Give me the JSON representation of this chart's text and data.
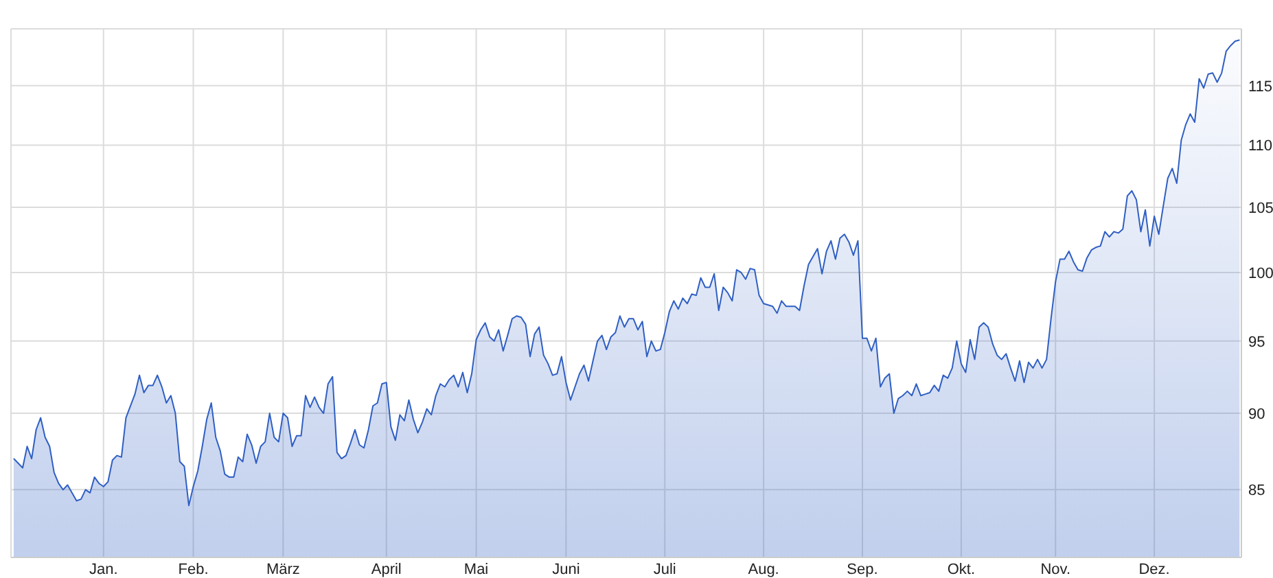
{
  "chart_data": {
    "type": "area",
    "color": "#2f5fc3",
    "categories": [
      null,
      null,
      null,
      null,
      null,
      null,
      null,
      null,
      null,
      null,
      null,
      null,
      null,
      null,
      null,
      null,
      null,
      null,
      null,
      null,
      "Jan.",
      null,
      null,
      null,
      null,
      null,
      null,
      null,
      null,
      null,
      null,
      null,
      null,
      null,
      null,
      null,
      null,
      null,
      null,
      null,
      "Feb.",
      null,
      null,
      null,
      null,
      null,
      null,
      null,
      null,
      null,
      null,
      null,
      null,
      null,
      null,
      null,
      null,
      null,
      null,
      null,
      "März",
      null,
      null,
      null,
      null,
      null,
      null,
      null,
      null,
      null,
      null,
      null,
      null,
      null,
      null,
      null,
      null,
      null,
      null,
      null,
      null,
      null,
      null,
      "April",
      null,
      null,
      null,
      null,
      null,
      null,
      null,
      null,
      null,
      null,
      null,
      null,
      null,
      null,
      null,
      null,
      null,
      null,
      null,
      "Mai",
      null,
      null,
      null,
      null,
      null,
      null,
      null,
      null,
      null,
      null,
      null,
      null,
      null,
      null,
      null,
      null,
      null,
      null,
      null,
      "Juni",
      null,
      null,
      null,
      null,
      null,
      null,
      null,
      null,
      null,
      null,
      null,
      null,
      null,
      null,
      null,
      null,
      null,
      null,
      null,
      null,
      null,
      "Juli",
      null,
      null,
      null,
      null,
      null,
      null,
      null,
      null,
      null,
      null,
      null,
      null,
      null,
      null,
      null,
      null,
      null,
      null,
      null,
      null,
      null,
      "Aug.",
      null,
      null,
      null,
      null,
      null,
      null,
      null,
      null,
      null,
      null,
      null,
      null,
      null,
      null,
      null,
      null,
      null,
      null,
      null,
      null,
      null,
      "Sep.",
      null,
      null,
      null,
      null,
      null,
      null,
      null,
      null,
      null,
      null,
      null,
      null,
      null,
      null,
      null,
      null,
      null,
      null,
      null,
      null,
      null,
      "Okt.",
      null,
      null,
      null,
      null,
      null,
      null,
      null,
      null,
      null,
      null,
      null,
      null,
      null,
      null,
      null,
      null,
      null,
      null,
      null,
      null,
      "Nov.",
      null,
      null,
      null,
      null,
      null,
      null,
      null,
      null,
      null,
      null,
      null,
      null,
      null,
      null,
      null,
      null,
      null,
      null,
      null,
      null,
      null,
      "Dez.",
      null,
      null,
      null,
      null,
      null,
      null,
      null,
      null,
      null,
      null,
      null,
      null,
      null,
      null,
      null,
      null,
      null,
      null,
      null
    ],
    "values": [
      87.0,
      86.7,
      86.4,
      87.8,
      87.0,
      88.9,
      89.7,
      88.4,
      87.8,
      86.1,
      85.4,
      85.0,
      85.3,
      84.8,
      84.3,
      84.4,
      85.0,
      84.8,
      85.8,
      85.4,
      85.2,
      85.5,
      86.9,
      87.2,
      87.1,
      89.7,
      90.5,
      91.3,
      92.6,
      91.4,
      91.9,
      91.9,
      92.6,
      91.8,
      90.7,
      91.2,
      90.0,
      86.8,
      86.5,
      84.0,
      85.2,
      86.2,
      87.8,
      89.6,
      90.7,
      88.4,
      87.5,
      86.0,
      85.8,
      85.8,
      87.1,
      86.8,
      88.6,
      87.9,
      86.7,
      87.8,
      88.1,
      90.0,
      88.4,
      88.1,
      90.0,
      89.7,
      87.8,
      88.5,
      88.5,
      91.2,
      90.4,
      91.1,
      90.4,
      90.0,
      92.0,
      92.5,
      87.4,
      87.0,
      87.2,
      88.0,
      88.9,
      87.9,
      87.7,
      88.9,
      90.5,
      90.7,
      92.0,
      92.1,
      89.1,
      88.2,
      89.9,
      89.5,
      90.9,
      89.6,
      88.7,
      89.4,
      90.3,
      89.9,
      91.2,
      92.0,
      91.8,
      92.3,
      92.6,
      91.8,
      92.8,
      91.4,
      92.7,
      95.1,
      95.8,
      96.3,
      95.3,
      95.0,
      95.8,
      94.3,
      95.4,
      96.6,
      96.8,
      96.7,
      96.2,
      93.9,
      95.5,
      96.0,
      94.0,
      93.4,
      92.6,
      92.7,
      93.9,
      92.1,
      90.9,
      91.8,
      92.7,
      93.3,
      92.2,
      93.6,
      95.0,
      95.4,
      94.4,
      95.3,
      95.6,
      96.8,
      96.0,
      96.6,
      96.6,
      95.8,
      96.4,
      93.9,
      95.0,
      94.3,
      94.4,
      95.6,
      97.1,
      97.9,
      97.3,
      98.1,
      97.7,
      98.4,
      98.3,
      99.6,
      98.9,
      98.9,
      99.9,
      97.2,
      98.9,
      98.5,
      97.9,
      100.2,
      100.0,
      99.5,
      100.3,
      100.2,
      98.3,
      97.7,
      97.6,
      97.5,
      97.0,
      97.9,
      97.5,
      97.5,
      97.5,
      97.2,
      99.0,
      100.6,
      101.2,
      101.8,
      99.9,
      101.6,
      102.4,
      101.0,
      102.6,
      102.9,
      102.3,
      101.3,
      102.4,
      95.2,
      95.2,
      94.3,
      95.2,
      91.8,
      92.4,
      92.7,
      90.0,
      91.0,
      91.2,
      91.5,
      91.2,
      92.0,
      91.2,
      91.3,
      91.4,
      91.9,
      91.5,
      92.6,
      92.4,
      93.1,
      95.0,
      93.4,
      92.8,
      95.1,
      93.7,
      96.0,
      96.3,
      96.0,
      94.8,
      94.0,
      93.7,
      94.1,
      93.1,
      92.2,
      93.6,
      92.1,
      93.5,
      93.1,
      93.7,
      93.1,
      93.7,
      96.6,
      99.3,
      101.0,
      101.0,
      101.6,
      100.8,
      100.2,
      100.1,
      101.1,
      101.7,
      101.9,
      102.0,
      103.1,
      102.7,
      103.1,
      103.0,
      103.3,
      105.9,
      106.3,
      105.6,
      103.1,
      104.8,
      102.0,
      104.3,
      102.9,
      105.1,
      107.3,
      108.1,
      106.9,
      110.4,
      111.7,
      112.6,
      111.9,
      115.6,
      114.8,
      116.0,
      116.1,
      115.3,
      116.1,
      118.0,
      118.5,
      118.9,
      119.0
    ],
    "ylim": [
      80.8,
      120
    ],
    "yticks": [
      85,
      90,
      95,
      100,
      105,
      110,
      115
    ],
    "log": true,
    "grid": true
  }
}
